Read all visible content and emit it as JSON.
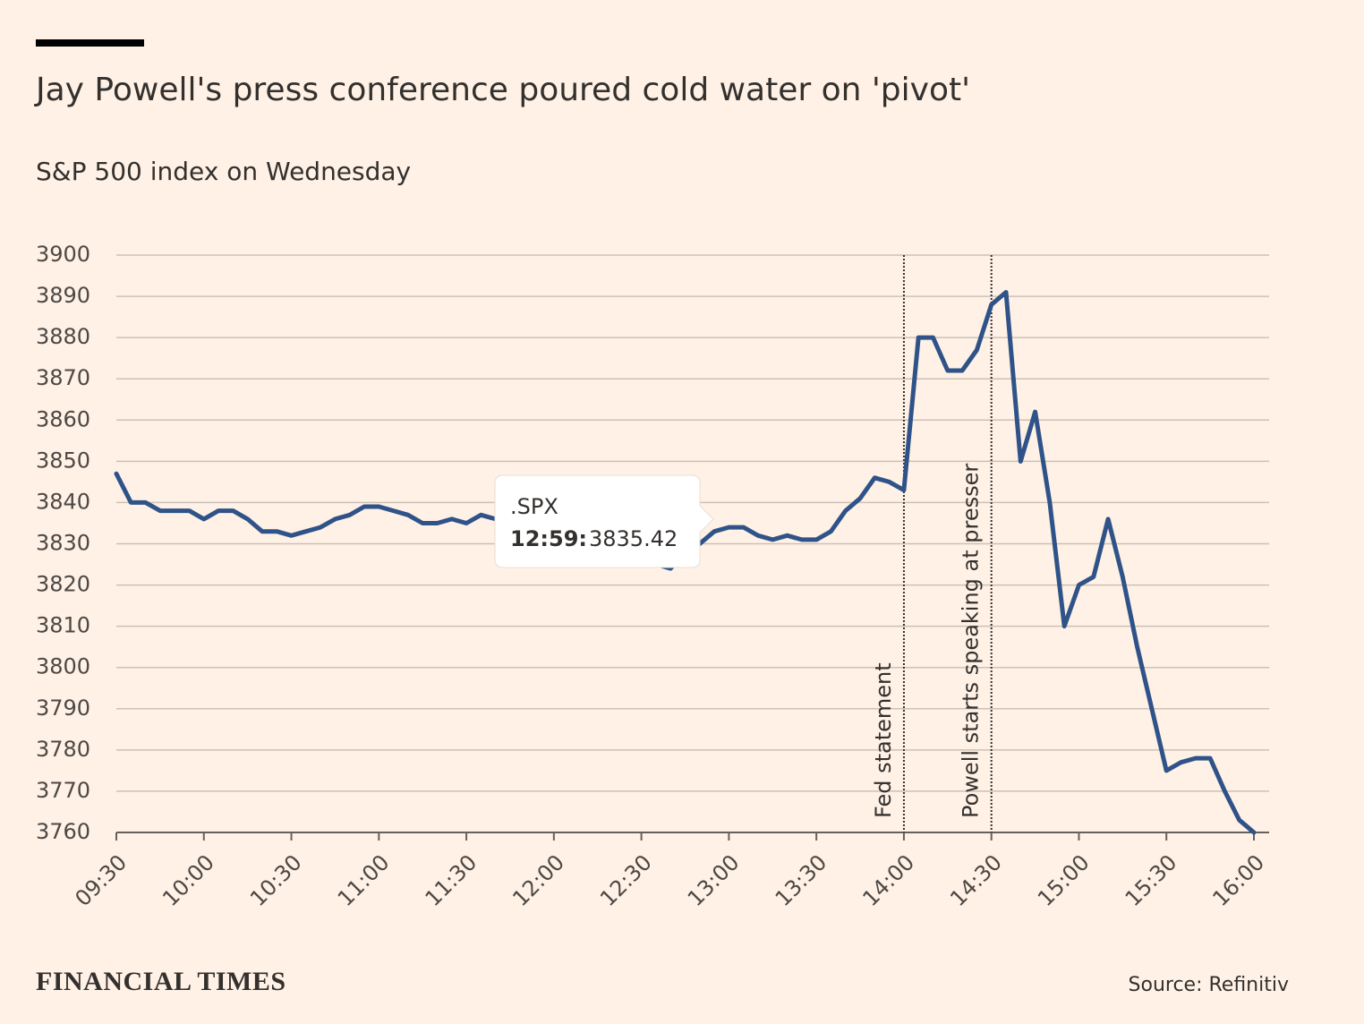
{
  "chart_data": {
    "type": "line",
    "title": "Jay Powell's press conference poured cold water on 'pivot'",
    "subtitle": "S&P 500 index on Wednesday",
    "source": "Source: Refinitiv",
    "brand": "FINANCIAL TIMES",
    "color": "#2f5389",
    "x": [
      "09:30",
      "09:35",
      "09:40",
      "09:45",
      "09:50",
      "09:55",
      "10:00",
      "10:05",
      "10:10",
      "10:15",
      "10:20",
      "10:25",
      "10:30",
      "10:35",
      "10:40",
      "10:45",
      "10:50",
      "10:55",
      "11:00",
      "11:05",
      "11:10",
      "11:15",
      "11:20",
      "11:25",
      "11:30",
      "11:35",
      "11:40",
      "11:45",
      "11:50",
      "11:55",
      "12:00",
      "12:05",
      "12:10",
      "12:15",
      "12:20",
      "12:25",
      "12:30",
      "12:35",
      "12:40",
      "12:45",
      "12:50",
      "12:55",
      "13:00",
      "13:05",
      "13:10",
      "13:15",
      "13:20",
      "13:25",
      "13:30",
      "13:35",
      "13:40",
      "13:45",
      "13:50",
      "13:55",
      "14:00",
      "14:05",
      "14:10",
      "14:15",
      "14:20",
      "14:25",
      "14:30",
      "14:35",
      "14:40",
      "14:45",
      "14:50",
      "14:55",
      "15:00",
      "15:05",
      "15:10",
      "15:15",
      "15:20",
      "15:25",
      "15:30",
      "15:35",
      "15:40",
      "15:45",
      "15:50",
      "15:55",
      "16:00"
    ],
    "values": [
      3847,
      3840,
      3840,
      3838,
      3838,
      3838,
      3836,
      3838,
      3838,
      3836,
      3833,
      3833,
      3832,
      3833,
      3834,
      3836,
      3837,
      3839,
      3839,
      3838,
      3837,
      3835,
      3835,
      3836,
      3835,
      3837,
      3836,
      3833,
      3831,
      3830,
      3829,
      3828,
      3828,
      3827,
      3826,
      3826,
      3826,
      3825,
      3824,
      3828,
      3830,
      3833,
      3834,
      3834,
      3832,
      3831,
      3832,
      3831,
      3831,
      3833,
      3838,
      3841,
      3846,
      3845,
      3843,
      3880,
      3880,
      3872,
      3872,
      3877,
      3888,
      3891,
      3850,
      3862,
      3840,
      3810,
      3820,
      3822,
      3836,
      3822,
      3805,
      3790,
      3775,
      3777,
      3778,
      3778,
      3770,
      3763,
      3760
    ],
    "xlim": [
      "09:30",
      "16:00"
    ],
    "xticks": [
      "09:30",
      "10:00",
      "10:30",
      "11:00",
      "11:30",
      "12:00",
      "12:30",
      "13:00",
      "13:30",
      "14:00",
      "14:30",
      "15:00",
      "15:30",
      "16:00"
    ],
    "ylim": [
      3760,
      3900
    ],
    "yticks": [
      3760,
      3770,
      3780,
      3790,
      3800,
      3810,
      3820,
      3830,
      3840,
      3850,
      3860,
      3870,
      3880,
      3890,
      3900
    ],
    "grid": true,
    "annotations": [
      {
        "x": "14:00",
        "label": "Fed statement"
      },
      {
        "x": "14:30",
        "label": "Powell starts speaking at presser"
      }
    ],
    "tooltip": {
      "series": ".SPX",
      "time": "12:59:",
      "value": 3835.42
    }
  }
}
